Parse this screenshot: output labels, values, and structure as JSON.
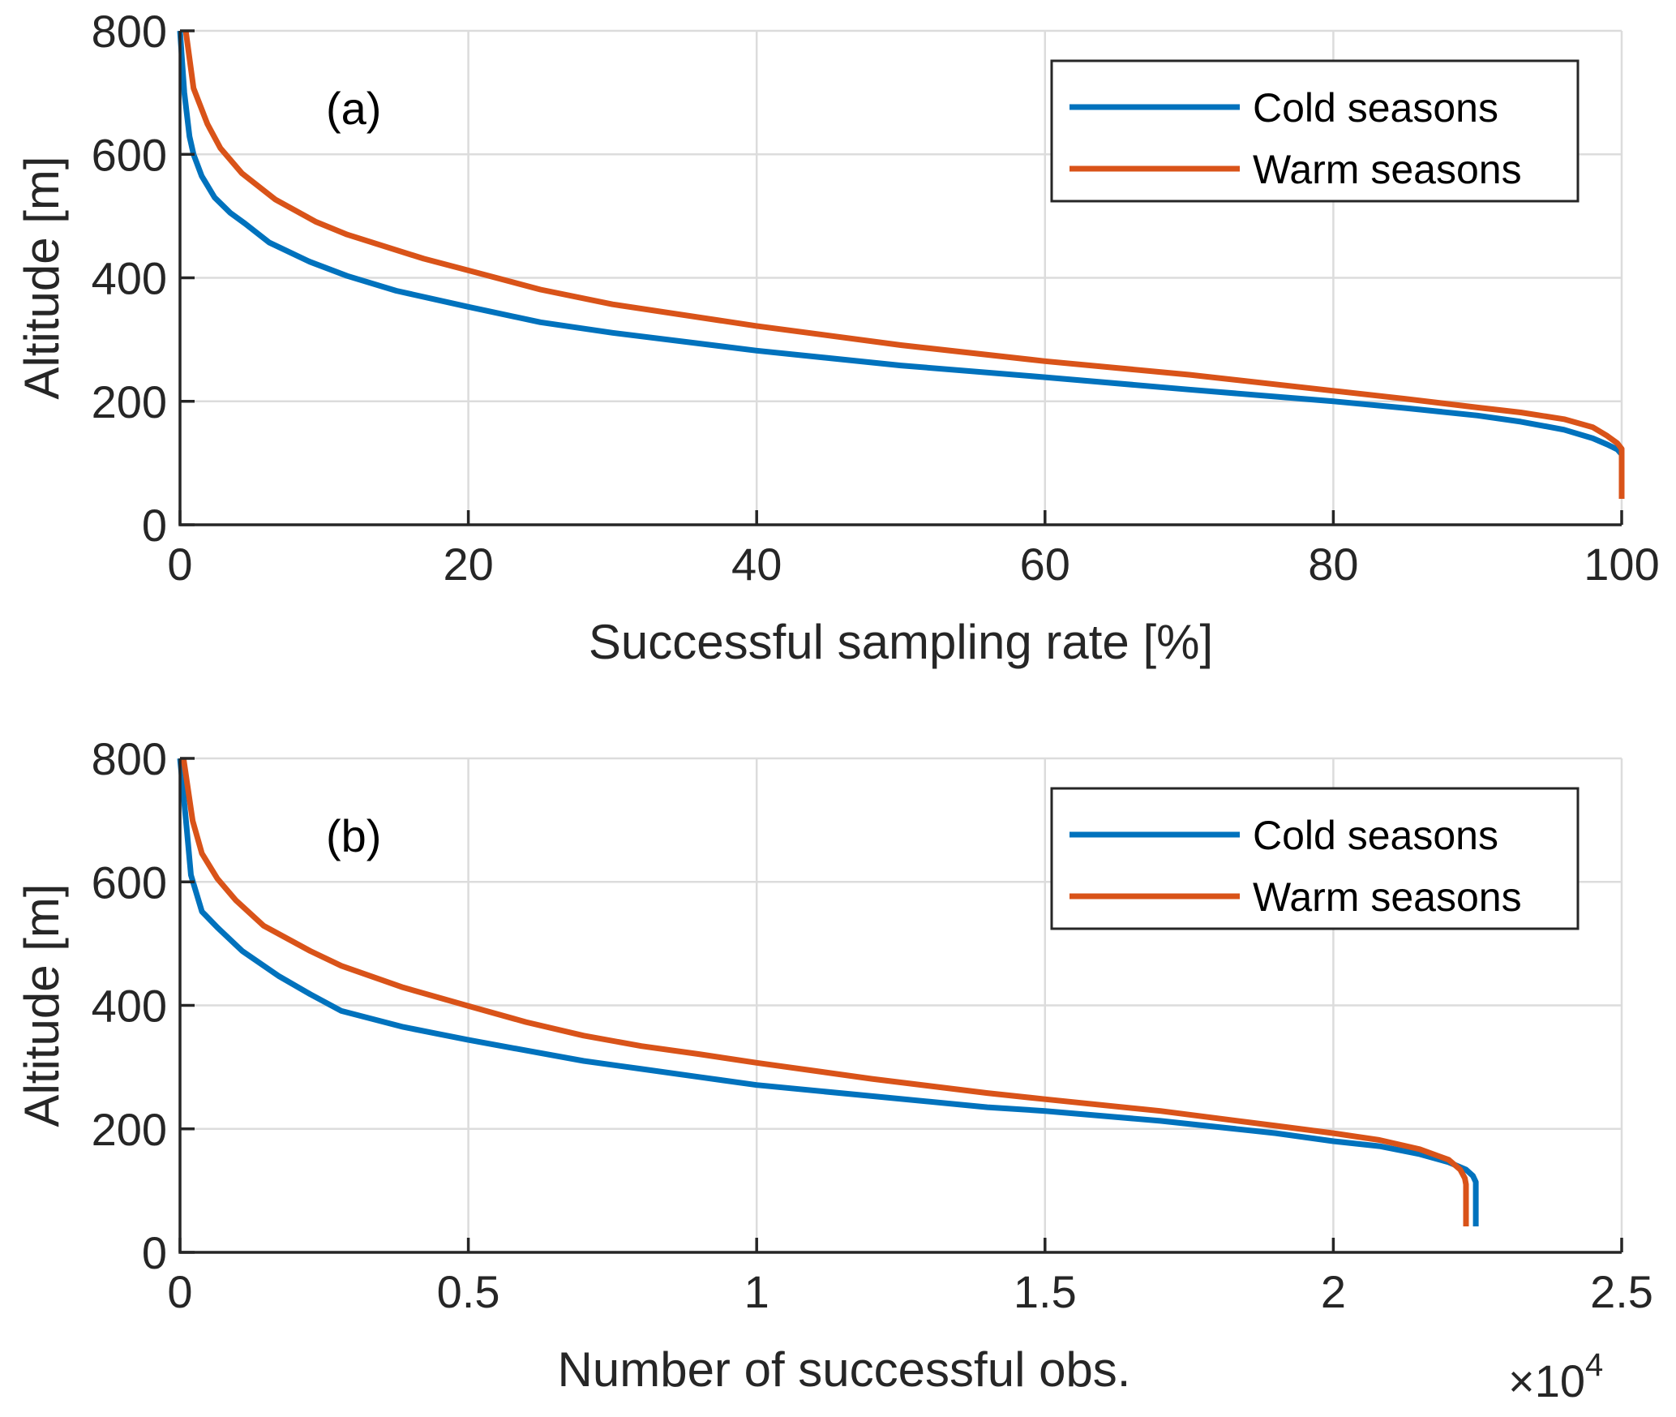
{
  "chart_data": [
    {
      "type": "line",
      "panel_label": "(a)",
      "xlabel": "Successful sampling rate [%]",
      "ylabel": "Altitude [m]",
      "xlim": [
        0,
        100
      ],
      "ylim": [
        0,
        800
      ],
      "xticks": [
        0,
        20,
        40,
        60,
        80,
        100
      ],
      "xtick_labels": [
        "0",
        "20",
        "40",
        "60",
        "80",
        "100"
      ],
      "yticks": [
        0,
        200,
        400,
        600,
        800
      ],
      "ytick_labels": [
        "0",
        "200",
        "400",
        "600",
        "800"
      ],
      "x_exponent_label": "",
      "grid": true,
      "legend": {
        "position": "top-right",
        "entries": [
          "Cold seasons",
          "Warm seasons"
        ]
      },
      "series": [
        {
          "name": "Cold seasons",
          "color": "#0072BD",
          "x": [
            0,
            0.3,
            0.66,
            0.94,
            1.5,
            2.4,
            3.5,
            4.5,
            6.2,
            9.0,
            11.6,
            15.0,
            20,
            25,
            30,
            40,
            50,
            60,
            70,
            80,
            85,
            90,
            93,
            96,
            98,
            99,
            99.7,
            100,
            100
          ],
          "y": [
            800,
            700,
            629,
            600,
            565,
            530,
            505,
            488,
            457,
            426,
            403,
            379,
            353,
            328,
            311,
            282,
            258,
            239,
            219,
            200,
            189,
            177,
            167,
            154,
            140,
            130,
            122,
            114,
            42
          ]
        },
        {
          "name": "Warm seasons",
          "color": "#D95319",
          "x": [
            0.4,
            0.94,
            1.9,
            2.8,
            4.3,
            6.6,
            9.4,
            11.6,
            16.9,
            20,
            25,
            30,
            40,
            50,
            60,
            70,
            80,
            85,
            90,
            93,
            96,
            98,
            99,
            99.7,
            100,
            100
          ],
          "y": [
            800,
            707,
            649,
            610,
            569,
            527,
            491,
            470,
            431,
            412,
            381,
            357,
            322,
            291,
            265,
            243,
            217,
            204,
            190,
            182,
            171,
            158,
            144,
            132,
            123,
            42
          ]
        }
      ]
    },
    {
      "type": "line",
      "panel_label": "(b)",
      "xlabel": "Number of successful obs.",
      "ylabel": "Altitude [m]",
      "xlim": [
        0,
        2.5
      ],
      "ylim": [
        0,
        800
      ],
      "xticks": [
        0,
        0.5,
        1,
        1.5,
        2,
        2.5
      ],
      "xtick_labels": [
        "0",
        "0.5",
        "1",
        "1.5",
        "2",
        "2.5"
      ],
      "yticks": [
        0,
        200,
        400,
        600,
        800
      ],
      "ytick_labels": [
        "0",
        "200",
        "400",
        "600",
        "800"
      ],
      "x_exponent_label": "×10",
      "x_exponent_power": "4",
      "grid": true,
      "legend": {
        "position": "top-right",
        "entries": [
          "Cold seasons",
          "Warm seasons"
        ]
      },
      "series": [
        {
          "name": "Cold seasons",
          "color": "#0072BD",
          "x": [
            0,
            0.011,
            0.019,
            0.038,
            0.065,
            0.108,
            0.172,
            0.226,
            0.28,
            0.387,
            0.5,
            0.6,
            0.7,
            0.8,
            0.9,
            1.0,
            1.2,
            1.4,
            1.5,
            1.7,
            1.9,
            2.0,
            2.08,
            2.15,
            2.2,
            2.23,
            2.242,
            2.247,
            2.247
          ],
          "y": [
            800,
            693,
            611,
            552,
            526,
            488,
            447,
            418,
            391,
            365,
            344,
            327,
            310,
            297,
            284,
            271,
            253,
            235,
            229,
            213,
            193,
            180,
            172,
            159,
            146,
            134,
            124,
            114,
            42
          ]
        },
        {
          "name": "Warm seasons",
          "color": "#D95319",
          "x": [
            0.006,
            0.022,
            0.038,
            0.065,
            0.097,
            0.145,
            0.226,
            0.28,
            0.387,
            0.5,
            0.6,
            0.7,
            0.8,
            0.9,
            1.0,
            1.2,
            1.4,
            1.5,
            1.7,
            1.9,
            2.0,
            2.08,
            2.15,
            2.2,
            2.22,
            2.228,
            2.23,
            2.23
          ],
          "y": [
            800,
            699,
            646,
            605,
            570,
            529,
            488,
            464,
            429,
            399,
            373,
            351,
            334,
            321,
            307,
            281,
            258,
            248,
            229,
            205,
            193,
            182,
            167,
            150,
            134,
            120,
            110,
            42
          ]
        }
      ]
    }
  ]
}
